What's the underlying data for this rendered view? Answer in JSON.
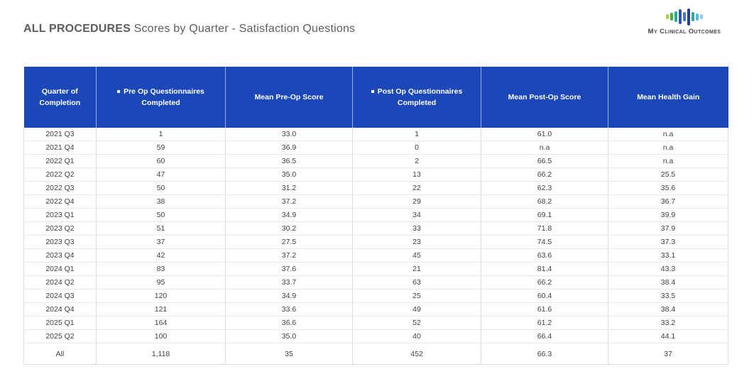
{
  "title": {
    "emphasis": "ALL PROCEDURES",
    "rest": " Scores by Quarter - Satisfaction Questions"
  },
  "logo": {
    "name": "My Clinical Outcomes",
    "bars": [
      {
        "h": 7,
        "color": "#b5ca3a"
      },
      {
        "h": 11,
        "color": "#43b049"
      },
      {
        "h": 15,
        "color": "#2ba88f"
      },
      {
        "h": 21,
        "color": "#2e55b0"
      },
      {
        "h": 13,
        "color": "#3f7dc3"
      },
      {
        "h": 24,
        "color": "#27408f"
      },
      {
        "h": 13,
        "color": "#2ba8a0"
      },
      {
        "h": 10,
        "color": "#5bb8dd"
      },
      {
        "h": 7,
        "color": "#8ecbe8"
      }
    ]
  },
  "colors": {
    "header_bg": "#1b47b9",
    "header_text": "#ffffff",
    "body_text": "#3f3f3f",
    "title_text": "#5c5c63",
    "grid_vertical": "#dcdcdc",
    "grid_horizontal": "#e7e7e7"
  },
  "chart_data": {
    "type": "table",
    "title": "ALL PROCEDURES Scores by Quarter - Satisfaction Questions",
    "columns": [
      {
        "label": "Quarter of Completion",
        "marker": false
      },
      {
        "label": "Pre Op Questionnaires Completed",
        "marker": true
      },
      {
        "label": "Mean Pre-Op Score",
        "marker": false
      },
      {
        "label": "Post Op Questionnaires Completed",
        "marker": true
      },
      {
        "label": "Mean Post-Op Score",
        "marker": false
      },
      {
        "label": "Mean Health Gain",
        "marker": false
      }
    ],
    "rows": [
      [
        "2021 Q3",
        "1",
        "33.0",
        "1",
        "61.0",
        "n.a"
      ],
      [
        "2021 Q4",
        "59",
        "36.9",
        "0",
        "n.a",
        "n.a"
      ],
      [
        "2022 Q1",
        "60",
        "36.5",
        "2",
        "66.5",
        "n.a"
      ],
      [
        "2022 Q2",
        "47",
        "35.0",
        "13",
        "66.2",
        "25.5"
      ],
      [
        "2022 Q3",
        "50",
        "31.2",
        "22",
        "62.3",
        "35.6"
      ],
      [
        "2022 Q4",
        "38",
        "37.2",
        "29",
        "68.2",
        "36.7"
      ],
      [
        "2023 Q1",
        "50",
        "34.9",
        "34",
        "69.1",
        "39.9"
      ],
      [
        "2023 Q2",
        "51",
        "30.2",
        "33",
        "71.8",
        "37.9"
      ],
      [
        "2023 Q3",
        "37",
        "27.5",
        "23",
        "74.5",
        "37.3"
      ],
      [
        "2023 Q4",
        "42",
        "37.2",
        "45",
        "63.6",
        "33.1"
      ],
      [
        "2024 Q1",
        "83",
        "37.6",
        "21",
        "81.4",
        "43.3"
      ],
      [
        "2024 Q2",
        "95",
        "33.7",
        "63",
        "66.2",
        "38.4"
      ],
      [
        "2024 Q3",
        "120",
        "34.9",
        "25",
        "60.4",
        "33.5"
      ],
      [
        "2024 Q4",
        "121",
        "33.6",
        "49",
        "61.6",
        "38.4"
      ],
      [
        "2025 Q1",
        "164",
        "36.6",
        "52",
        "61.2",
        "33.2"
      ],
      [
        "2025 Q2",
        "100",
        "35.0",
        "40",
        "66.4",
        "44.1"
      ]
    ],
    "total_row": [
      "All",
      "1,118",
      "35",
      "452",
      "66.3",
      "37"
    ]
  }
}
